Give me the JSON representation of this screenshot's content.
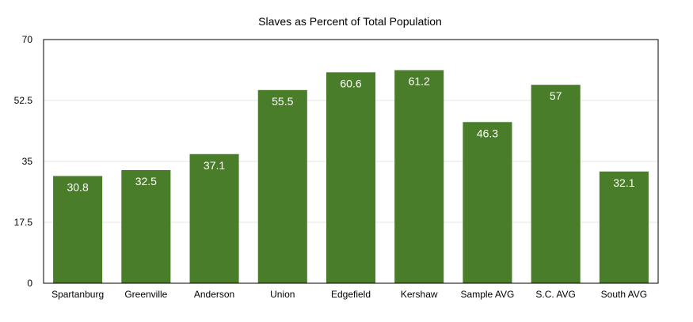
{
  "chart_data": {
    "type": "bar",
    "title": "Slaves as Percent of Total Population",
    "categories": [
      "Spartanburg",
      "Greenville",
      "Anderson",
      "Union",
      "Edgefield",
      "Kershaw",
      "Sample AVG",
      "S.C. AVG",
      "South AVG"
    ],
    "values": [
      30.8,
      32.5,
      37.1,
      55.5,
      60.6,
      61.2,
      46.3,
      57,
      32.1
    ],
    "data_labels": [
      "30.8",
      "32.5",
      "37.1",
      "55.5",
      "60.6",
      "61.2",
      "46.3",
      "57",
      "32.1"
    ],
    "ylim": [
      0,
      70
    ],
    "yticks": [
      0,
      17.5,
      35,
      52.5,
      70
    ],
    "ytick_labels": [
      "0",
      "17.5",
      "35",
      "52.5",
      "70"
    ],
    "xlabel": "",
    "ylabel": "",
    "grid": true,
    "legend": "none",
    "bar_color": "#4a7d2a",
    "grid_color": "#e6e6e6"
  }
}
